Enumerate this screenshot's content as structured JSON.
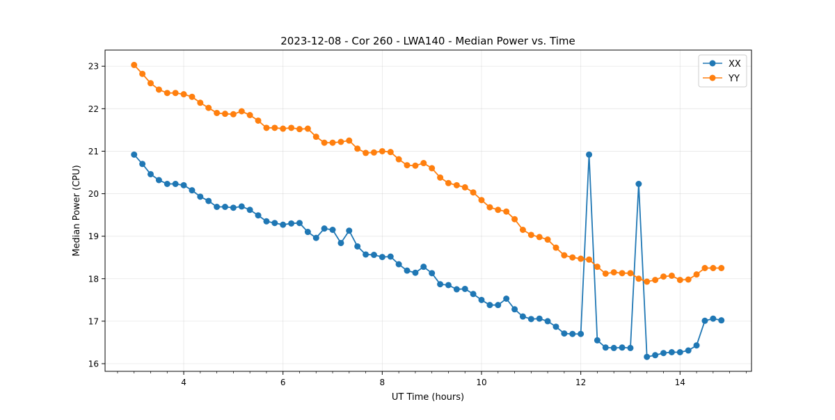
{
  "chart_data": {
    "type": "line",
    "title": "2023-12-08 - Cor 260 - LWA140 - Median Power vs. Time",
    "xlabel": "UT Time (hours)",
    "ylabel": "Median Power (CPU)",
    "xlim": [
      2.415,
      15.44
    ],
    "ylim": [
      15.82,
      23.38
    ],
    "xticks": [
      4,
      6,
      8,
      10,
      12,
      14
    ],
    "xtick_labels": [
      "4",
      "6",
      "8",
      "10",
      "12",
      "14"
    ],
    "yticks": [
      16,
      17,
      18,
      19,
      20,
      21,
      22,
      23
    ],
    "ytick_labels": [
      "16",
      "17",
      "18",
      "19",
      "20",
      "21",
      "22",
      "23"
    ],
    "grid": true,
    "legend": {
      "placement": "top-right",
      "entries": [
        "XX",
        "YY"
      ]
    },
    "x": [
      3.0,
      3.167,
      3.333,
      3.5,
      3.667,
      3.833,
      4.0,
      4.167,
      4.333,
      4.5,
      4.667,
      4.833,
      5.0,
      5.167,
      5.333,
      5.5,
      5.667,
      5.833,
      6.0,
      6.167,
      6.333,
      6.5,
      6.667,
      6.833,
      7.0,
      7.167,
      7.333,
      7.5,
      7.667,
      7.833,
      8.0,
      8.167,
      8.333,
      8.5,
      8.667,
      8.833,
      9.0,
      9.167,
      9.333,
      9.5,
      9.667,
      9.833,
      10.0,
      10.167,
      10.333,
      10.5,
      10.667,
      10.833,
      11.0,
      11.167,
      11.333,
      11.5,
      11.667,
      11.833,
      12.0,
      12.167,
      12.333,
      12.5,
      12.667,
      12.833,
      13.0,
      13.167,
      13.333,
      13.5,
      13.667,
      13.833,
      14.0,
      14.167,
      14.333,
      14.5,
      14.667,
      14.833
    ],
    "series": [
      {
        "name": "XX",
        "color": "#1f77b4",
        "values": [
          20.92,
          20.7,
          20.46,
          20.32,
          20.23,
          20.23,
          20.2,
          20.08,
          19.93,
          19.83,
          19.69,
          19.69,
          19.67,
          19.7,
          19.62,
          19.49,
          19.35,
          19.31,
          19.27,
          19.3,
          19.31,
          19.1,
          18.96,
          19.18,
          19.15,
          18.84,
          19.13,
          18.76,
          18.57,
          18.56,
          18.51,
          18.52,
          18.34,
          18.19,
          18.14,
          18.28,
          18.13,
          17.87,
          17.85,
          17.75,
          17.76,
          17.64,
          17.5,
          17.38,
          17.38,
          17.53,
          17.28,
          17.11,
          17.05,
          17.06,
          17.0,
          16.87,
          16.71,
          16.7,
          16.7,
          20.92,
          16.55,
          16.38,
          16.37,
          16.38,
          16.37,
          20.23,
          16.16,
          16.2,
          16.25,
          16.27,
          16.27,
          16.31,
          16.43,
          17.01,
          17.06,
          17.02
        ]
      },
      {
        "name": "YY",
        "color": "#ff7f0e",
        "values": [
          23.03,
          22.82,
          22.6,
          22.45,
          22.37,
          22.37,
          22.34,
          22.28,
          22.14,
          22.02,
          21.9,
          21.88,
          21.87,
          21.94,
          21.85,
          21.72,
          21.55,
          21.55,
          21.53,
          21.55,
          21.52,
          21.53,
          21.34,
          21.2,
          21.2,
          21.22,
          21.25,
          21.06,
          20.96,
          20.97,
          21.0,
          20.98,
          20.81,
          20.67,
          20.66,
          20.72,
          20.6,
          20.38,
          20.25,
          20.2,
          20.15,
          20.03,
          19.85,
          19.68,
          19.62,
          19.58,
          19.4,
          19.15,
          19.03,
          18.98,
          18.92,
          18.73,
          18.55,
          18.5,
          18.47,
          18.45,
          18.28,
          18.12,
          18.15,
          18.13,
          18.13,
          18.0,
          17.93,
          17.97,
          18.05,
          18.07,
          17.97,
          17.98,
          18.1,
          18.25,
          18.25,
          18.25
        ]
      }
    ]
  }
}
